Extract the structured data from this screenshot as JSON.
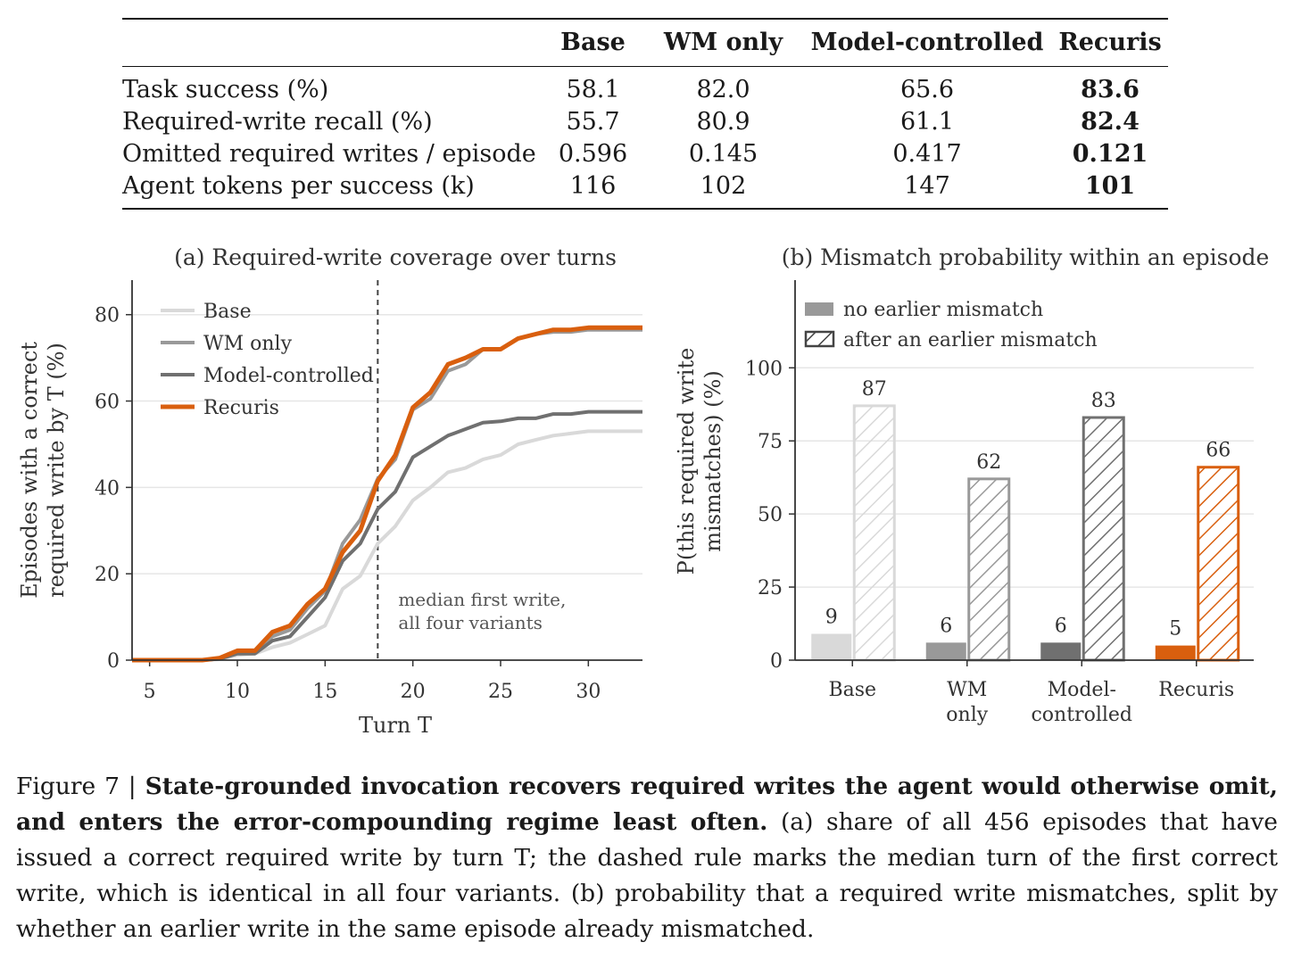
{
  "table": {
    "columns": [
      "",
      "Base",
      "WM only",
      "Model-controlled",
      "Recuris"
    ],
    "rows": [
      {
        "label": "Task success (%)",
        "values": [
          "58.1",
          "82.0",
          "65.6",
          "83.6"
        ]
      },
      {
        "label": "Required-write recall (%)",
        "values": [
          "55.7",
          "80.9",
          "61.1",
          "82.4"
        ]
      },
      {
        "label": "Omitted required writes / episode",
        "values": [
          "0.596",
          "0.145",
          "0.417",
          "0.121"
        ]
      },
      {
        "label": "Agent tokens per success (k)",
        "values": [
          "116",
          "102",
          "147",
          "101"
        ]
      }
    ],
    "bold_column": 3
  },
  "chart_data": [
    {
      "type": "line",
      "title": "(a) Required-write coverage over turns",
      "xlabel": "Turn T",
      "ylabel": "Episodes with a correct required write by T (%)",
      "ylabel_lines": [
        "Episodes with a correct",
        "required write by T (%)"
      ],
      "xlim": [
        4,
        34
      ],
      "ylim": [
        0,
        88
      ],
      "xticks": [
        5,
        10,
        15,
        20,
        25,
        30
      ],
      "yticks": [
        0,
        20,
        40,
        60,
        80
      ],
      "grid": "horizontal",
      "legend": "top-left",
      "vline": {
        "x": 18,
        "label_lines": [
          "median first write,",
          "all four variants"
        ]
      },
      "x": [
        4,
        5,
        6,
        7,
        8,
        9,
        10,
        11,
        12,
        13,
        14,
        15,
        16,
        17,
        18,
        19,
        20,
        21,
        22,
        23,
        24,
        25,
        26,
        27,
        28,
        29,
        30,
        31,
        32,
        33,
        34
      ],
      "series": [
        {
          "name": "Base",
          "color": "#d9d9d9",
          "values": [
            0,
            0,
            0,
            0,
            0,
            0.2,
            1.2,
            1.5,
            3,
            4,
            6,
            8,
            16.5,
            19.5,
            27,
            31,
            37,
            40,
            43.5,
            44.5,
            46.5,
            47.5,
            50,
            51,
            52,
            52.5,
            53,
            53,
            53,
            53,
            53
          ]
        },
        {
          "name": "WM only",
          "color": "#999999",
          "values": [
            0,
            0,
            0,
            0,
            0,
            0.4,
            2,
            2,
            5.5,
            7,
            12,
            16,
            27,
            32.5,
            42,
            46.5,
            58,
            60.5,
            67,
            68.5,
            72,
            72,
            74.5,
            75.5,
            76,
            76,
            76.5,
            76.5,
            76.5,
            76.5,
            76.5
          ]
        },
        {
          "name": "Model-controlled",
          "color": "#707070",
          "values": [
            0,
            0,
            0,
            0,
            0,
            0.3,
            1.5,
            1.5,
            4.5,
            5.5,
            10,
            14.5,
            23,
            27,
            35,
            39,
            47,
            49.5,
            52,
            53.5,
            55,
            55.3,
            56,
            56,
            57,
            57,
            57.5,
            57.5,
            57.5,
            57.5,
            57.5
          ]
        },
        {
          "name": "Recuris",
          "color": "#d95f0e",
          "values": [
            0,
            0,
            0,
            0,
            0,
            0.5,
            2.2,
            2.2,
            6.5,
            8,
            13,
            16.5,
            25,
            30,
            41.5,
            47.5,
            58.5,
            62,
            68.5,
            70,
            72,
            72,
            74.5,
            75.5,
            76.5,
            76.5,
            77,
            77,
            77,
            77,
            77
          ]
        }
      ]
    },
    {
      "type": "bar",
      "title": "(b) Mismatch probability within an episode",
      "ylabel": "P(this required write mismatches) (%)",
      "ylabel_lines": [
        "P(this required write",
        "mismatches) (%)"
      ],
      "ylim": [
        0,
        100
      ],
      "yticks": [
        0,
        25,
        50,
        75,
        100
      ],
      "grid": "horizontal",
      "legend": "top-left",
      "categories": [
        "Base",
        "WM only",
        "Model-controlled",
        "Recuris"
      ],
      "category_lines": [
        [
          "Base"
        ],
        [
          "WM",
          "only"
        ],
        [
          "Model-",
          "controlled"
        ],
        [
          "Recuris"
        ]
      ],
      "category_colors": [
        "#d9d9d9",
        "#999999",
        "#707070",
        "#d95f0e"
      ],
      "series": [
        {
          "name": "no earlier mismatch",
          "style": "solid",
          "values": [
            9,
            6,
            6,
            5
          ]
        },
        {
          "name": "after an earlier mismatch",
          "style": "hatched",
          "values": [
            87,
            62,
            83,
            66
          ]
        }
      ]
    }
  ],
  "caption": {
    "label": "Figure 7 | ",
    "bold": "State-grounded invocation recovers required writes the agent would otherwise omit, and enters the error-compounding regime least often.",
    "text": " (a) share of all 456 episodes that have issued a correct required write by turn T; the dashed rule marks the median turn of the first correct write, which is identical in all four variants. (b) probability that a required write mismatches, split by whether an earlier write in the same episode already mismatched."
  }
}
